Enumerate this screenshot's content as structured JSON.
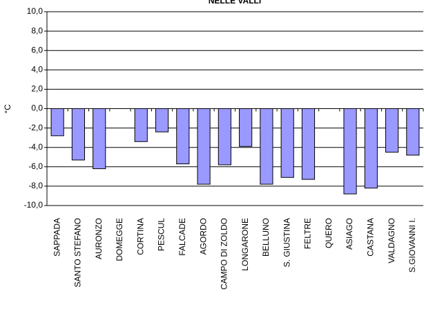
{
  "chart_data": {
    "type": "bar",
    "title": "NELLE VALLI",
    "y_label": "°C",
    "categories": [
      "SAPPADA",
      "SANTO STEFANO",
      "AURONZO",
      "DOMEGGE",
      "CORTINA",
      "PESCUL",
      "FALCADE",
      "AGORDO",
      "CAMPO DI ZOLDO",
      "LONGARONE",
      "BELLUNO",
      "S. GIUSTINA",
      "FELTRE",
      "QUERO",
      "ASIAGO",
      "CASTANA",
      "VALDAGNO",
      "S.GIOVANNI I."
    ],
    "values": [
      -2.8,
      -5.3,
      -6.2,
      null,
      -3.4,
      -2.4,
      -5.7,
      -7.8,
      -5.8,
      -3.9,
      -7.8,
      -7.1,
      -7.3,
      null,
      -8.8,
      -8.2,
      -4.5,
      -4.8
    ],
    "color": "#9999ff",
    "ylim": [
      -10,
      10
    ],
    "yticks": [
      {
        "value": -10,
        "label": "-10,0"
      },
      {
        "value": -8,
        "label": "-8,0"
      },
      {
        "value": -6,
        "label": "-6,0"
      },
      {
        "value": -4,
        "label": "-4,0"
      },
      {
        "value": -2,
        "label": "-2,0"
      },
      {
        "value": 0,
        "label": "0,0"
      },
      {
        "value": 2,
        "label": "2,0"
      },
      {
        "value": 4,
        "label": "4,0"
      },
      {
        "value": 6,
        "label": "6,0"
      },
      {
        "value": 8,
        "label": "8,0"
      },
      {
        "value": 10,
        "label": "10,0"
      }
    ],
    "grid": true
  }
}
